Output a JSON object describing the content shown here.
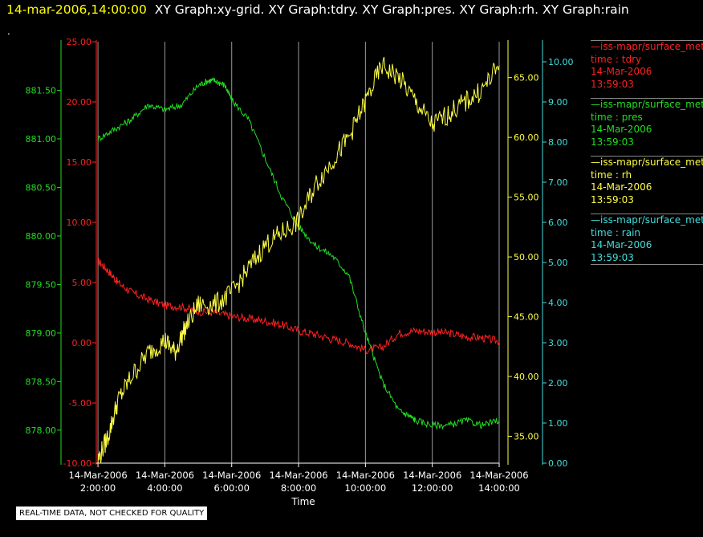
{
  "header": {
    "timestamp": "14-mar-2006,14:00:00",
    "titles": "XY Graph:xy-grid.  XY Graph:tdry.  XY Graph:pres.  XY Graph:rh.  XY Graph:rain",
    "dot": "."
  },
  "legend": [
    {
      "name": "—iss-mapr/surface_met",
      "field": "time : tdry",
      "date": "14-Mar-2006",
      "time": "13:59:03",
      "color": "#ff2020"
    },
    {
      "name": "—iss-mapr/surface_met",
      "field": "time : pres",
      "date": "14-Mar-2006",
      "time": "13:59:03",
      "color": "#22dd22"
    },
    {
      "name": "—iss-mapr/surface_met",
      "field": "time : rh",
      "date": "14-Mar-2006",
      "time": "13:59:03",
      "color": "#ffff44"
    },
    {
      "name": "—iss-mapr/surface_met",
      "field": "time : rain",
      "date": "14-Mar-2006",
      "time": "13:59:03",
      "color": "#44dddd"
    }
  ],
  "note": "REAL-TIME DATA, NOT CHECKED FOR QUALITY",
  "chart_data": {
    "type": "line",
    "xlabel": "Time",
    "x_ticks": [
      {
        "date": "14-Mar-2006",
        "time": "2:00:00",
        "hour": 2
      },
      {
        "date": "14-Mar-2006",
        "time": "4:00:00",
        "hour": 4
      },
      {
        "date": "14-Mar-2006",
        "time": "6:00:00",
        "hour": 6
      },
      {
        "date": "14-Mar-2006",
        "time": "8:00:00",
        "hour": 8
      },
      {
        "date": "14-Mar-2006",
        "time": "10:00:00",
        "hour": 10
      },
      {
        "date": "14-Mar-2006",
        "time": "12:00:00",
        "hour": 12
      },
      {
        "date": "14-Mar-2006",
        "time": "14:00:00",
        "hour": 14
      }
    ],
    "xlim": [
      1.95,
      14.0
    ],
    "vertical_grid": true,
    "axes": {
      "tdry": {
        "side": "left",
        "color": "#ff2020",
        "ylim": [
          -10,
          25
        ],
        "ticks": [
          "25.00",
          "20.00",
          "15.00",
          "10.00",
          "5.00",
          "0.00",
          "-5.00",
          "-10.00"
        ]
      },
      "pres": {
        "side": "left",
        "color": "#22dd22",
        "ylim": [
          877.66,
          882.0
        ],
        "ticks": [
          "881.50",
          "881.00",
          "880.50",
          "880.00",
          "879.50",
          "879.00",
          "878.50",
          "878.00"
        ]
      },
      "rh": {
        "side": "right",
        "color": "#ffff44",
        "ylim": [
          32.75,
          68.0
        ],
        "ticks": [
          "65.00",
          "60.00",
          "55.00",
          "50.00",
          "45.00",
          "40.00",
          "35.00"
        ]
      },
      "rain": {
        "side": "right",
        "color": "#44dddd",
        "ylim": [
          0.0,
          10.5
        ],
        "ticks": [
          "10.00",
          "9.00",
          "8.00",
          "7.00",
          "6.00",
          "5.00",
          "4.00",
          "3.00",
          "2.00",
          "1.00",
          "0.00"
        ]
      }
    },
    "series": [
      {
        "name": "tdry",
        "axis": "tdry",
        "color": "#ff2020",
        "x": [
          2.0,
          2.3,
          2.6,
          3.0,
          3.5,
          4.0,
          4.5,
          5.0,
          5.5,
          6.0,
          6.5,
          7.0,
          7.5,
          8.0,
          8.5,
          9.0,
          9.5,
          10.0,
          10.5,
          11.0,
          11.5,
          12.0,
          12.5,
          13.0,
          13.5,
          14.0
        ],
        "values": [
          6.8,
          6.0,
          5.0,
          4.2,
          3.6,
          3.1,
          3.0,
          2.6,
          2.5,
          2.2,
          2.0,
          1.8,
          1.5,
          1.0,
          0.7,
          0.3,
          0.0,
          -0.6,
          -0.4,
          0.8,
          1.0,
          0.9,
          0.8,
          0.5,
          0.4,
          0.1
        ]
      },
      {
        "name": "pres",
        "axis": "pres",
        "color": "#22dd22",
        "x": [
          2.0,
          2.5,
          3.0,
          3.5,
          4.0,
          4.5,
          5.0,
          5.3,
          5.5,
          5.8,
          6.0,
          6.5,
          7.0,
          7.5,
          8.0,
          8.5,
          9.0,
          9.5,
          10.0,
          10.5,
          11.0,
          11.3,
          11.5,
          12.0,
          12.5,
          13.0,
          13.5,
          14.0
        ],
        "values": [
          881.0,
          881.1,
          881.2,
          881.35,
          881.3,
          881.35,
          881.55,
          881.6,
          881.6,
          881.55,
          881.4,
          881.2,
          880.8,
          880.4,
          880.1,
          879.9,
          879.8,
          879.6,
          879.0,
          878.5,
          878.2,
          878.15,
          878.1,
          878.05,
          878.05,
          878.1,
          878.05,
          878.1
        ]
      },
      {
        "name": "rh",
        "axis": "rh",
        "color": "#ffff44",
        "x": [
          2.0,
          2.3,
          2.6,
          3.0,
          3.5,
          4.0,
          4.3,
          4.6,
          5.0,
          5.5,
          6.0,
          6.5,
          7.0,
          7.5,
          8.0,
          8.5,
          9.0,
          9.5,
          10.0,
          10.5,
          11.0,
          11.5,
          12.0,
          12.5,
          13.0,
          13.5,
          14.0
        ],
        "values": [
          33,
          35,
          38,
          40,
          42,
          43,
          42,
          44,
          46,
          46,
          47,
          49,
          51,
          52,
          53,
          56,
          58,
          60,
          63,
          66,
          65,
          63,
          61,
          62,
          63,
          64,
          66
        ]
      },
      {
        "name": "rain",
        "axis": "rain",
        "color": "#44dddd",
        "x": [
          2.0,
          14.0
        ],
        "values": [
          0.0,
          0.0
        ]
      }
    ]
  }
}
